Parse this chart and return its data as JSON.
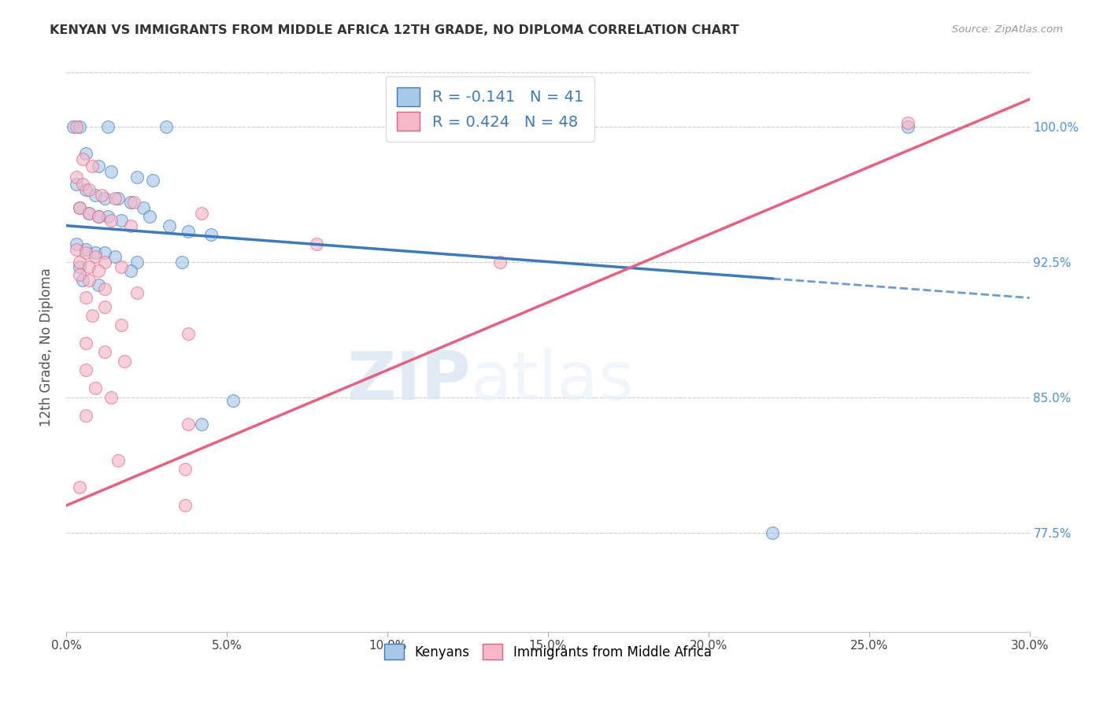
{
  "title": "KENYAN VS IMMIGRANTS FROM MIDDLE AFRICA 12TH GRADE, NO DIPLOMA CORRELATION CHART",
  "source": "Source: ZipAtlas.com",
  "xlabel_vals": [
    0.0,
    5.0,
    10.0,
    15.0,
    20.0,
    25.0,
    30.0
  ],
  "ylabel_vals": [
    77.5,
    85.0,
    92.5,
    100.0
  ],
  "xlim": [
    0.0,
    30.0
  ],
  "ylim": [
    72.0,
    103.5
  ],
  "ylabel": "12th Grade, No Diploma",
  "legend_labels": [
    "Kenyans",
    "Immigrants from Middle Africa"
  ],
  "R_blue": -0.141,
  "N_blue": 41,
  "R_pink": 0.424,
  "N_pink": 48,
  "blue_color": "#a8c8e8",
  "pink_color": "#f4b8c8",
  "blue_line_color": "#3a7abf",
  "pink_line_color": "#e86080",
  "blue_line_x0": 0.0,
  "blue_line_y0": 94.5,
  "blue_line_x1": 30.0,
  "blue_line_y1": 90.5,
  "blue_solid_end": 22.0,
  "pink_line_x0": 0.0,
  "pink_line_y0": 79.0,
  "pink_line_x1": 30.0,
  "pink_line_y1": 101.5,
  "blue_scatter": [
    [
      0.2,
      100.0
    ],
    [
      0.4,
      100.0
    ],
    [
      1.3,
      100.0
    ],
    [
      3.1,
      100.0
    ],
    [
      13.2,
      100.0
    ],
    [
      26.2,
      100.0
    ],
    [
      0.6,
      98.5
    ],
    [
      1.0,
      97.8
    ],
    [
      1.4,
      97.5
    ],
    [
      2.2,
      97.2
    ],
    [
      2.7,
      97.0
    ],
    [
      0.3,
      96.8
    ],
    [
      0.6,
      96.5
    ],
    [
      0.9,
      96.2
    ],
    [
      1.2,
      96.0
    ],
    [
      1.6,
      96.0
    ],
    [
      2.0,
      95.8
    ],
    [
      2.4,
      95.5
    ],
    [
      0.4,
      95.5
    ],
    [
      0.7,
      95.2
    ],
    [
      1.0,
      95.0
    ],
    [
      1.3,
      95.0
    ],
    [
      1.7,
      94.8
    ],
    [
      2.6,
      95.0
    ],
    [
      3.2,
      94.5
    ],
    [
      3.8,
      94.2
    ],
    [
      4.5,
      94.0
    ],
    [
      0.3,
      93.5
    ],
    [
      0.6,
      93.2
    ],
    [
      0.9,
      93.0
    ],
    [
      1.2,
      93.0
    ],
    [
      1.5,
      92.8
    ],
    [
      2.2,
      92.5
    ],
    [
      0.4,
      92.2
    ],
    [
      2.0,
      92.0
    ],
    [
      3.6,
      92.5
    ],
    [
      0.5,
      91.5
    ],
    [
      1.0,
      91.2
    ],
    [
      5.2,
      84.8
    ],
    [
      4.2,
      83.5
    ],
    [
      22.0,
      77.5
    ]
  ],
  "pink_scatter": [
    [
      0.3,
      100.0
    ],
    [
      13.2,
      100.0
    ],
    [
      26.2,
      100.2
    ],
    [
      0.5,
      98.2
    ],
    [
      0.8,
      97.8
    ],
    [
      0.3,
      97.2
    ],
    [
      0.5,
      96.8
    ],
    [
      0.7,
      96.5
    ],
    [
      1.1,
      96.2
    ],
    [
      1.5,
      96.0
    ],
    [
      2.1,
      95.8
    ],
    [
      0.4,
      95.5
    ],
    [
      0.7,
      95.2
    ],
    [
      1.0,
      95.0
    ],
    [
      1.4,
      94.8
    ],
    [
      2.0,
      94.5
    ],
    [
      4.2,
      95.2
    ],
    [
      7.8,
      93.5
    ],
    [
      13.5,
      92.5
    ],
    [
      0.3,
      93.2
    ],
    [
      0.6,
      93.0
    ],
    [
      0.9,
      92.8
    ],
    [
      1.2,
      92.5
    ],
    [
      1.7,
      92.2
    ],
    [
      0.4,
      92.5
    ],
    [
      0.7,
      92.2
    ],
    [
      1.0,
      92.0
    ],
    [
      0.4,
      91.8
    ],
    [
      0.7,
      91.5
    ],
    [
      1.2,
      91.0
    ],
    [
      2.2,
      90.8
    ],
    [
      0.6,
      90.5
    ],
    [
      1.2,
      90.0
    ],
    [
      0.8,
      89.5
    ],
    [
      1.7,
      89.0
    ],
    [
      3.8,
      88.5
    ],
    [
      0.6,
      88.0
    ],
    [
      1.2,
      87.5
    ],
    [
      1.8,
      87.0
    ],
    [
      0.6,
      86.5
    ],
    [
      0.9,
      85.5
    ],
    [
      1.4,
      85.0
    ],
    [
      0.6,
      84.0
    ],
    [
      3.8,
      83.5
    ],
    [
      1.6,
      81.5
    ],
    [
      3.7,
      81.0
    ],
    [
      0.4,
      80.0
    ],
    [
      3.7,
      79.0
    ]
  ],
  "watermark_zip": "ZIP",
  "watermark_atlas": "atlas",
  "background_color": "#ffffff",
  "grid_color": "#cccccc"
}
